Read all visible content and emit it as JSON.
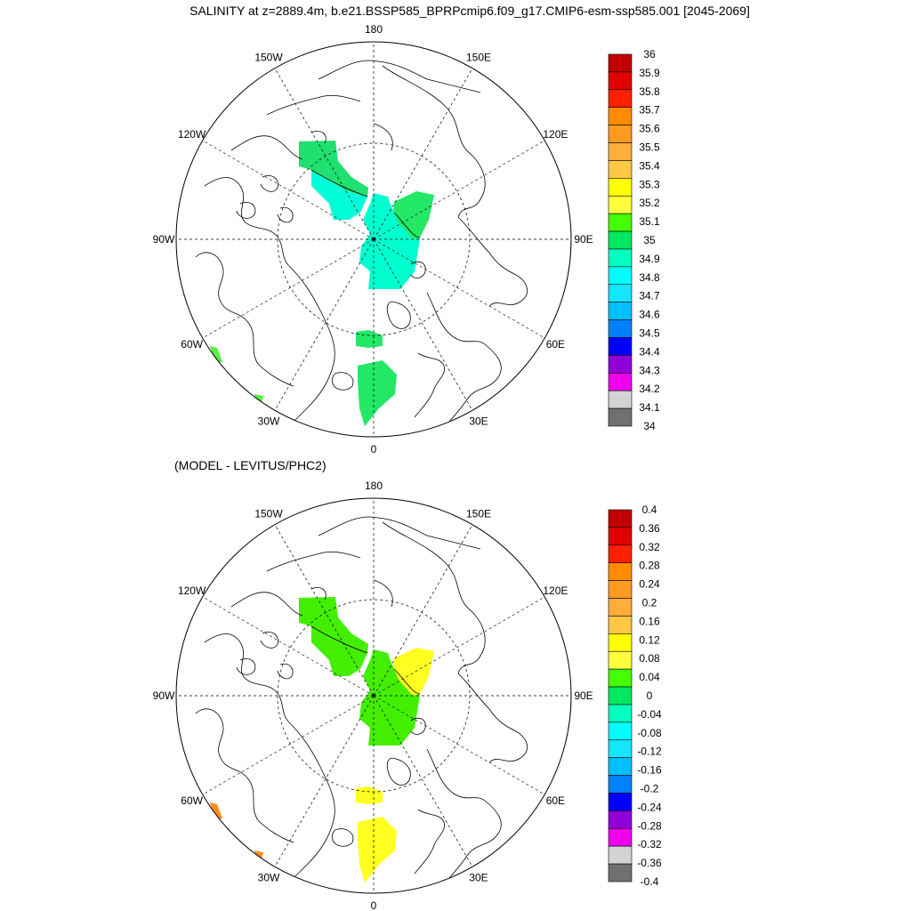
{
  "title": "SALINITY at z=2889.4m, b.e21.BSSP585_BPRPcmip6.f09_g17.CMIP6-esm-ssp585.001 [2045-2069]",
  "subtitle": "(MODEL - LEVITUS/PHC2)",
  "lon_labels": {
    "180": "180",
    "150E": "150E",
    "120E": "120E",
    "90E": "90E",
    "60E": "60E",
    "30E": "30E",
    "0": "0",
    "30W": "30W",
    "60W": "60W",
    "90W": "90W",
    "120W": "120W",
    "150W": "150W"
  },
  "colors": {
    "coast": "#000000",
    "grid": "#000000"
  },
  "panels": [
    {
      "name": "salinity",
      "levels": [
        "36",
        "35.9",
        "35.8",
        "35.7",
        "35.6",
        "35.5",
        "35.4",
        "35.3",
        "35.2",
        "35.1",
        "35",
        "34.9",
        "34.8",
        "34.7",
        "34.6",
        "34.5",
        "34.4",
        "34.3",
        "34.2",
        "34.1",
        "34"
      ],
      "colors": [
        "#c00000",
        "#e00000",
        "#ff2000",
        "#ff8c00",
        "#ff9a20",
        "#ffae3a",
        "#ffc844",
        "#ffff00",
        "#ffff40",
        "#44ff00",
        "#00e860",
        "#00ffc0",
        "#00ffff",
        "#14e6ff",
        "#00c0ff",
        "#0080ff",
        "#0000ff",
        "#9000d8",
        "#ee00ee",
        "#d3d3d3",
        "#707070"
      ],
      "field_colors": {
        "beaufort": "#1fe070",
        "beaufort_s": "#00ffd8",
        "lomo_s": "#22e866",
        "lomo": "#00ffd0",
        "iceland": "#22e866",
        "greenland": "#22e866",
        "lab": "#55ee44"
      }
    },
    {
      "name": "difference",
      "levels": [
        "0.4",
        "0.36",
        "0.32",
        "0.28",
        "0.24",
        "0.2",
        "0.16",
        "0.12",
        "0.08",
        "0.04",
        "0",
        "-0.04",
        "-0.08",
        "-0.12",
        "-0.16",
        "-0.2",
        "-0.24",
        "-0.28",
        "-0.32",
        "-0.36",
        "-0.4"
      ],
      "colors": [
        "#c00000",
        "#e00000",
        "#ff2000",
        "#ff8c00",
        "#ff9a20",
        "#ffae3a",
        "#ffc844",
        "#ffff00",
        "#ffff40",
        "#44ff00",
        "#00e860",
        "#00ffc0",
        "#00ffff",
        "#14e6ff",
        "#00c0ff",
        "#0080ff",
        "#0000ff",
        "#9000d8",
        "#ee00ee",
        "#d3d3d3",
        "#707070"
      ],
      "field_colors": {
        "beaufort": "#44ee00",
        "beaufort_s": "#44ee00",
        "lomo_s": "#ffff20",
        "lomo": "#44ee00",
        "iceland": "#ffff20",
        "greenland": "#ffff20",
        "lab": "#ff8c20"
      }
    }
  ]
}
